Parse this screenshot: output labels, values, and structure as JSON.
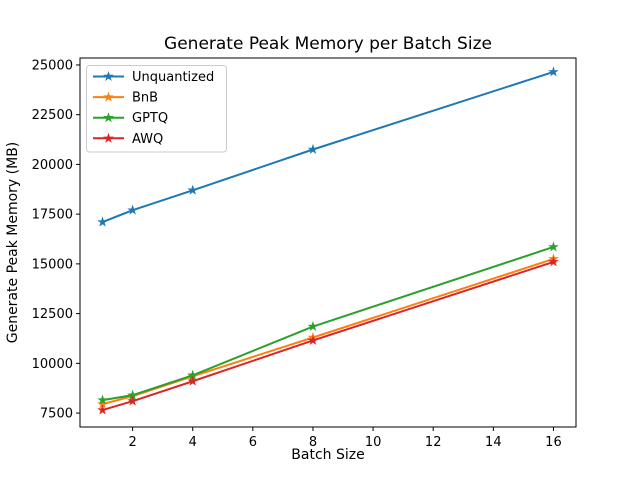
{
  "chart_data": {
    "type": "line",
    "title": "Generate Peak Memory per Batch Size",
    "xlabel": "Batch Size",
    "ylabel": "Generate Peak Memory (MB)",
    "x": [
      1,
      2,
      4,
      8,
      16
    ],
    "series": [
      {
        "name": "Unquantized",
        "color": "#1f77b4",
        "marker": "star",
        "values": [
          17100,
          17700,
          18700,
          20750,
          24650
        ]
      },
      {
        "name": "BnB",
        "color": "#ff7f0e",
        "marker": "star",
        "values": [
          7950,
          8350,
          9350,
          11300,
          15250
        ]
      },
      {
        "name": "GPTQ",
        "color": "#2ca02c",
        "marker": "star",
        "values": [
          8150,
          8400,
          9400,
          11850,
          15850
        ]
      },
      {
        "name": "AWQ",
        "color": "#d62728",
        "marker": "star",
        "values": [
          7650,
          8100,
          9100,
          11150,
          15100
        ]
      }
    ],
    "xticks": [
      2,
      4,
      6,
      8,
      10,
      12,
      14,
      16
    ],
    "yticks": [
      7500,
      10000,
      12500,
      15000,
      17500,
      20000,
      22500,
      25000
    ],
    "xlim": [
      0.25,
      16.75
    ],
    "ylim": [
      6800,
      25350
    ],
    "grid": false,
    "legend": {
      "position": "upper-left",
      "entries": [
        "Unquantized",
        "BnB",
        "GPTQ",
        "AWQ"
      ]
    },
    "colors": {
      "spine": "#000000",
      "background": "#ffffff",
      "legend_border": "#cccccc"
    }
  }
}
